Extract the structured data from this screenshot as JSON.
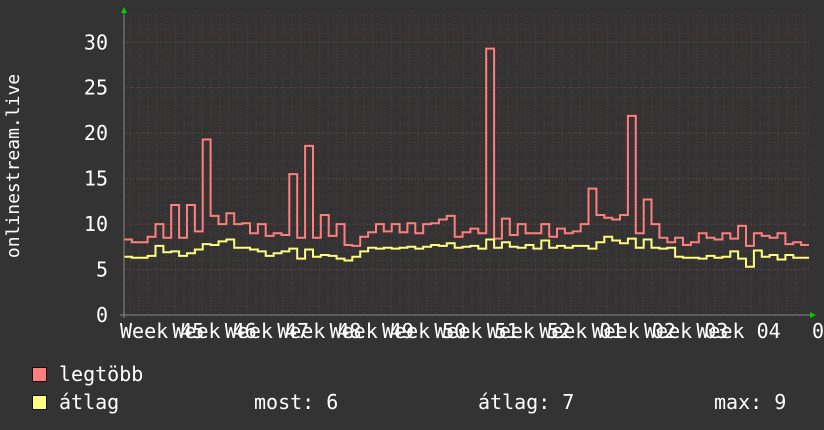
{
  "chart_data": {
    "type": "line",
    "ylabel": "onlinestream.live",
    "ylim": [
      0,
      33
    ],
    "yticks": [
      0,
      5,
      10,
      15,
      20,
      25,
      30
    ],
    "x_tick_labels": [
      "Week 45",
      "Week 46",
      "Week 47",
      "Week 48",
      "Week 49",
      "Week 50",
      "Week 51",
      "Week 52",
      "Week 01",
      "Week 02",
      "Week 03",
      "Week 04",
      "0"
    ],
    "grid": true,
    "series": [
      {
        "name": "legtöbb",
        "color": "#ff7f7f",
        "values": [
          8.3,
          8.0,
          8.0,
          8.6,
          10.0,
          8.5,
          12.1,
          8.5,
          12.1,
          9.2,
          19.3,
          10.9,
          10.0,
          11.2,
          10.0,
          10.1,
          9.0,
          10.0,
          8.7,
          9.0,
          8.8,
          15.5,
          8.5,
          18.6,
          8.5,
          11.0,
          8.7,
          10.0,
          7.7,
          7.6,
          8.6,
          9.1,
          10.0,
          9.2,
          10.0,
          9.1,
          10.1,
          9.0,
          10.0,
          10.1,
          10.5,
          10.9,
          8.6,
          9.1,
          9.5,
          9.0,
          29.3,
          8.4,
          10.6,
          8.8,
          10.0,
          9.0,
          9.0,
          10.0,
          8.6,
          9.5,
          9.0,
          9.2,
          10.0,
          13.9,
          11.0,
          10.7,
          10.5,
          11.0,
          21.9,
          9.0,
          12.7,
          10.0,
          8.5,
          8.0,
          8.5,
          7.7,
          8.0,
          9.0,
          8.5,
          8.3,
          9.0,
          8.4,
          9.8,
          7.6,
          9.0,
          8.7,
          8.5,
          9.0,
          7.8,
          8.0,
          7.7
        ]
      },
      {
        "name": "átlag",
        "color": "#ffff7f",
        "values": [
          6.4,
          6.3,
          6.3,
          6.5,
          7.6,
          6.9,
          7.0,
          6.5,
          6.8,
          7.2,
          7.8,
          7.7,
          8.1,
          8.3,
          7.4,
          7.4,
          7.2,
          7.0,
          6.5,
          6.8,
          7.0,
          7.3,
          6.2,
          7.2,
          6.4,
          6.6,
          6.5,
          6.2,
          6.0,
          6.4,
          7.0,
          7.4,
          7.3,
          7.4,
          7.3,
          7.4,
          7.5,
          7.3,
          7.5,
          7.7,
          7.6,
          7.9,
          7.4,
          7.5,
          7.6,
          7.3,
          8.3,
          7.4,
          8.0,
          7.5,
          7.4,
          7.7,
          7.3,
          8.2,
          7.4,
          7.6,
          7.4,
          7.6,
          7.6,
          7.3,
          8.0,
          8.6,
          8.2,
          7.9,
          8.4,
          7.4,
          8.3,
          7.4,
          7.3,
          7.4,
          6.4,
          6.3,
          6.3,
          6.2,
          6.5,
          6.3,
          6.4,
          7.0,
          6.2,
          5.3,
          7.1,
          6.4,
          6.6,
          6.1,
          6.6,
          6.3,
          6.3
        ]
      }
    ]
  },
  "legend": [
    {
      "label": "legtöbb",
      "color": "#ff7f7f"
    },
    {
      "label": "átlag",
      "color": "#ffff7f"
    }
  ],
  "stats": {
    "most": "most: 6",
    "atlag": "átlag: 7",
    "max": "max: 9"
  }
}
